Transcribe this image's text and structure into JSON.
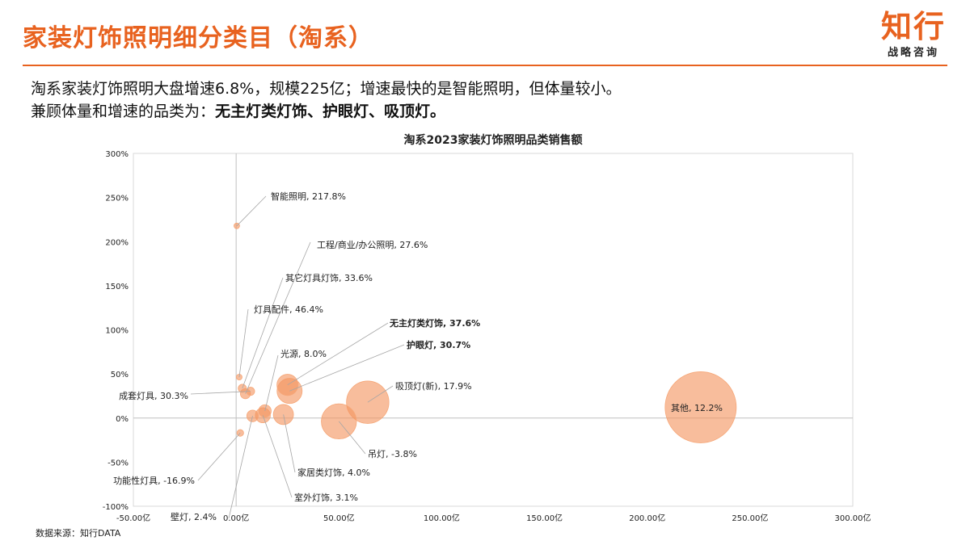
{
  "header": {
    "title": "家装灯饰照明细分类目（淘系）",
    "logo_main": "知行",
    "logo_sub": "战略咨询"
  },
  "summary": {
    "line1": "淘系家装灯饰照明大盘增速6.8%，规模225亿；增速最快的是智能照明，但体量较小。",
    "line2_prefix": "兼顾体量和增速的品类为：",
    "line2_bold": "无主灯类灯饰、护眼灯、吸顶灯。"
  },
  "source": "数据来源：知行DATA",
  "colors": {
    "accent": "#e8621f",
    "bubble": "#f4955f"
  },
  "chart_data": {
    "type": "scatter",
    "title": "淘系2023家装灯饰照明品类销售额",
    "xlim": [
      -50,
      300
    ],
    "ylim": [
      -100,
      300
    ],
    "x_ticks": [
      -50,
      0,
      50,
      100,
      150,
      200,
      250,
      300
    ],
    "x_tick_labels": [
      "-50.00亿",
      "0.00亿",
      "50.00亿",
      "100.00亿",
      "150.00亿",
      "200.00亿",
      "250.00亿",
      "300.00亿"
    ],
    "y_ticks": [
      -100,
      -50,
      0,
      50,
      100,
      150,
      200,
      250,
      300
    ],
    "y_tick_labels": [
      "-100%",
      "-50%",
      "0%",
      "50%",
      "100%",
      "150%",
      "200%",
      "250%",
      "300%"
    ],
    "points": [
      {
        "name": "智能照明",
        "x": 0.3,
        "y": 217.8,
        "size": 0.3,
        "label": "智能照明, 217.8%",
        "bold": false
      },
      {
        "name": "工程/商业/办公照明",
        "x": 4.5,
        "y": 27.6,
        "size": 4.5,
        "label": "工程/商业/办公照明, 27.6%",
        "bold": false
      },
      {
        "name": "其它灯具灯饰",
        "x": 3,
        "y": 33.6,
        "size": 3,
        "label": "其它灯具灯饰, 33.6%",
        "bold": false
      },
      {
        "name": "灯具配件",
        "x": 1.5,
        "y": 46.4,
        "size": 1.5,
        "label": "灯具配件, 46.4%",
        "bold": false
      },
      {
        "name": "无主灯类灯饰",
        "x": 25,
        "y": 37.6,
        "size": 20,
        "label": "无主灯类灯饰, 37.6%",
        "bold": true
      },
      {
        "name": "护眼灯",
        "x": 26,
        "y": 30.7,
        "size": 28,
        "label": "护眼灯, 30.7%",
        "bold": true
      },
      {
        "name": "光源",
        "x": 14,
        "y": 8.0,
        "size": 7,
        "label": "光源, 8.0%",
        "bold": false
      },
      {
        "name": "吸顶灯(新)",
        "x": 64,
        "y": 17.9,
        "size": 80,
        "label": "吸顶灯(新), 17.9%",
        "bold": false
      },
      {
        "name": "其他",
        "x": 226,
        "y": 12.2,
        "size": 225,
        "label": "其他, 12.2%",
        "bold": false
      },
      {
        "name": "成套灯具",
        "x": 7,
        "y": 30.3,
        "size": 3,
        "label": "成套灯具, 30.3%",
        "bold": false
      },
      {
        "name": "吊灯",
        "x": 50,
        "y": -3.8,
        "size": 55,
        "label": "吊灯, -3.8%",
        "bold": false
      },
      {
        "name": "家居类灯饰",
        "x": 23,
        "y": 4.0,
        "size": 18,
        "label": "家居类灯饰, 4.0%",
        "bold": false
      },
      {
        "name": "室外灯饰",
        "x": 13,
        "y": 3.1,
        "size": 10,
        "label": "室外灯饰, 3.1%",
        "bold": false
      },
      {
        "name": "功能性灯具",
        "x": 2,
        "y": -16.9,
        "size": 2,
        "label": "功能性灯具, -16.9%",
        "bold": false
      },
      {
        "name": "壁灯",
        "x": 8,
        "y": 2.4,
        "size": 6,
        "label": "壁灯, 2.4%",
        "bold": false
      }
    ]
  }
}
